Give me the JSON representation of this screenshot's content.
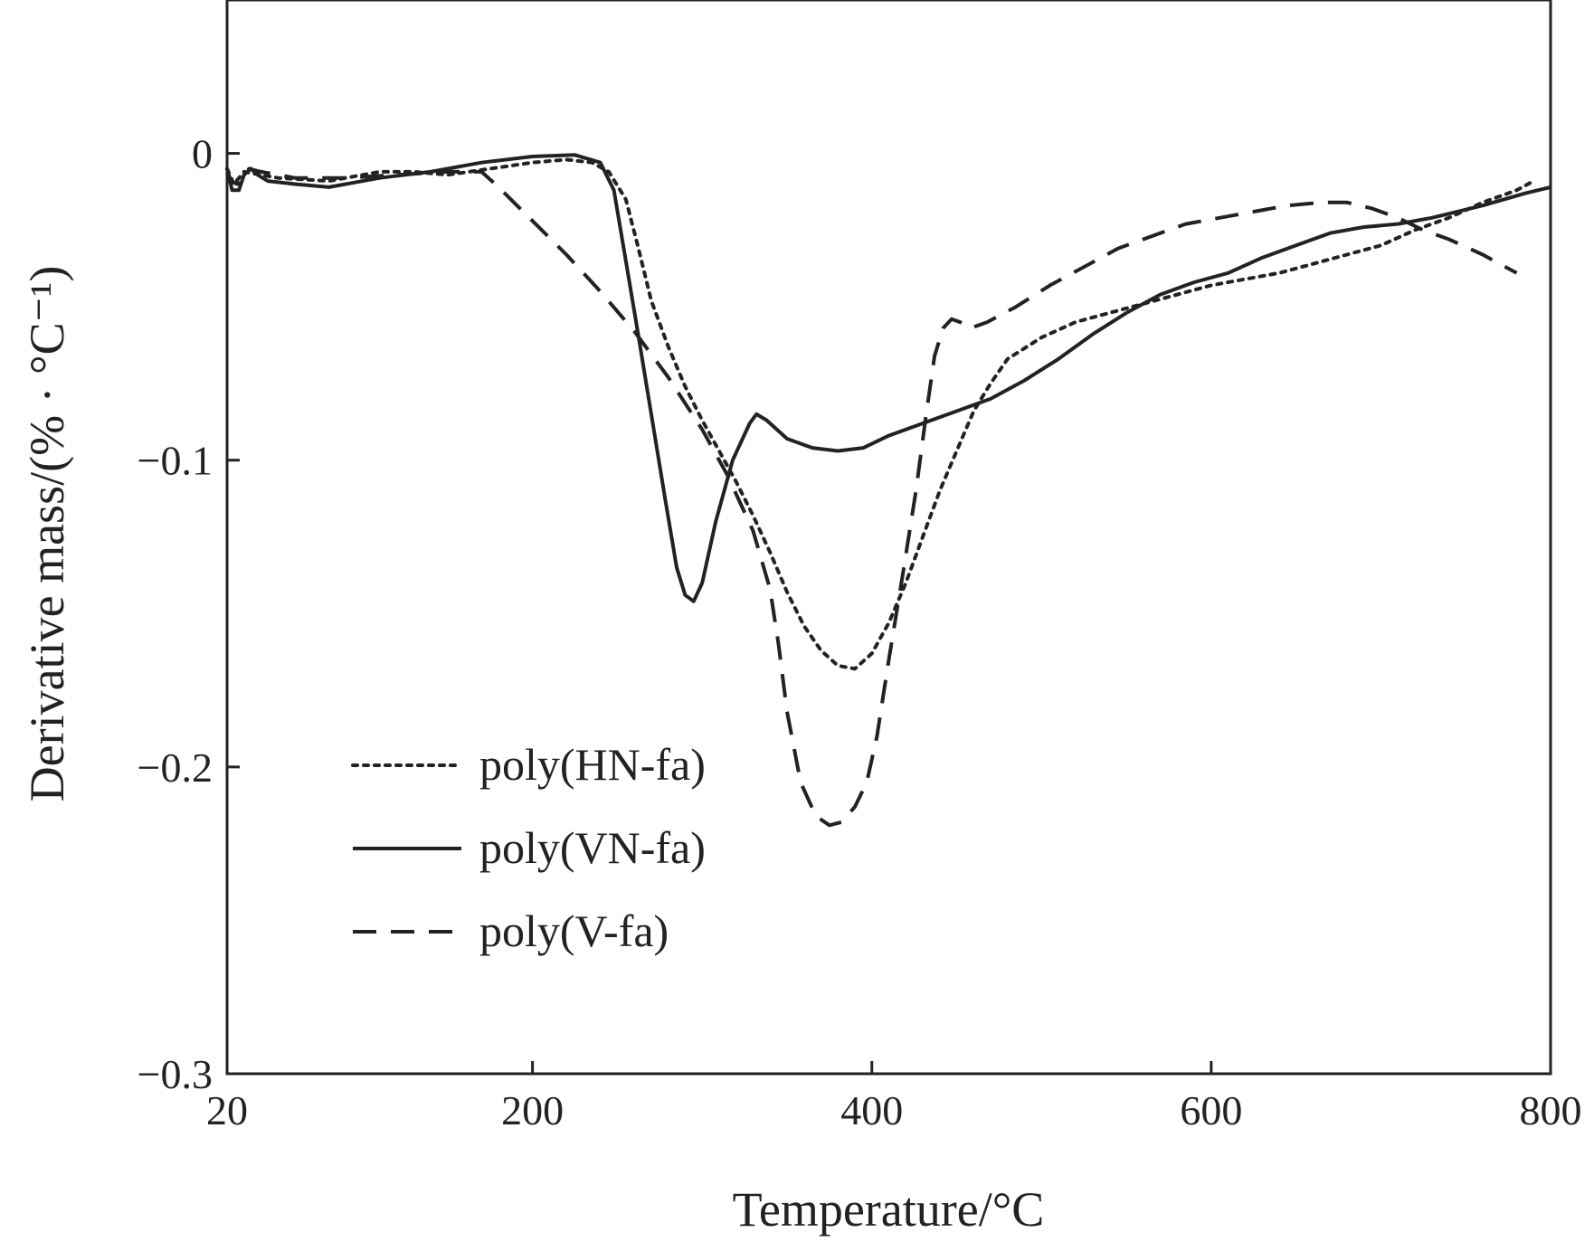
{
  "chart_data": {
    "type": "line",
    "title": "",
    "xlabel": "Temperature/°C",
    "ylabel": "Derivative mass/(% · °C⁻¹)",
    "xlim": [
      20,
      800
    ],
    "ylim": [
      -0.3,
      0.05
    ],
    "xticks": [
      20,
      200,
      400,
      600,
      800
    ],
    "xtick_labels": [
      "20",
      "200",
      "400",
      "600",
      "800"
    ],
    "yticks": [
      0,
      -0.1,
      -0.2,
      -0.3
    ],
    "ytick_labels": [
      "0",
      "−0.1",
      "−0.2",
      "−0.3"
    ],
    "grid": false,
    "legend_position": "bottom-left",
    "series": [
      {
        "name": "poly(HN-fa)",
        "line_style": "dotted",
        "color": "#222222",
        "points": [
          [
            20,
            -0.005
          ],
          [
            24,
            -0.01
          ],
          [
            30,
            -0.006
          ],
          [
            50,
            -0.008
          ],
          [
            80,
            -0.009
          ],
          [
            110,
            -0.006
          ],
          [
            130,
            -0.006
          ],
          [
            150,
            -0.007
          ],
          [
            175,
            -0.005
          ],
          [
            200,
            -0.003
          ],
          [
            220,
            -0.002
          ],
          [
            235,
            -0.003
          ],
          [
            245,
            -0.006
          ],
          [
            255,
            -0.015
          ],
          [
            262,
            -0.03
          ],
          [
            270,
            -0.048
          ],
          [
            280,
            -0.063
          ],
          [
            290,
            -0.076
          ],
          [
            300,
            -0.087
          ],
          [
            310,
            -0.097
          ],
          [
            320,
            -0.107
          ],
          [
            330,
            -0.118
          ],
          [
            340,
            -0.13
          ],
          [
            350,
            -0.143
          ],
          [
            360,
            -0.154
          ],
          [
            370,
            -0.162
          ],
          [
            380,
            -0.167
          ],
          [
            390,
            -0.168
          ],
          [
            400,
            -0.163
          ],
          [
            410,
            -0.153
          ],
          [
            420,
            -0.14
          ],
          [
            430,
            -0.125
          ],
          [
            440,
            -0.11
          ],
          [
            450,
            -0.097
          ],
          [
            460,
            -0.084
          ],
          [
            470,
            -0.075
          ],
          [
            480,
            -0.067
          ],
          [
            500,
            -0.06
          ],
          [
            520,
            -0.055
          ],
          [
            540,
            -0.052
          ],
          [
            560,
            -0.049
          ],
          [
            580,
            -0.046
          ],
          [
            600,
            -0.043
          ],
          [
            620,
            -0.041
          ],
          [
            640,
            -0.039
          ],
          [
            660,
            -0.036
          ],
          [
            680,
            -0.033
          ],
          [
            700,
            -0.03
          ],
          [
            720,
            -0.025
          ],
          [
            740,
            -0.021
          ],
          [
            760,
            -0.016
          ],
          [
            780,
            -0.012
          ],
          [
            790,
            -0.009
          ]
        ]
      },
      {
        "name": "poly(VN-fa)",
        "line_style": "solid",
        "color": "#222222",
        "points": [
          [
            20,
            -0.005
          ],
          [
            23,
            -0.012
          ],
          [
            27,
            -0.012
          ],
          [
            30,
            -0.007
          ],
          [
            34,
            -0.005
          ],
          [
            38,
            -0.007
          ],
          [
            44,
            -0.009
          ],
          [
            60,
            -0.01
          ],
          [
            80,
            -0.011
          ],
          [
            110,
            -0.008
          ],
          [
            140,
            -0.006
          ],
          [
            170,
            -0.003
          ],
          [
            200,
            -0.001
          ],
          [
            225,
            -0.0005
          ],
          [
            240,
            -0.003
          ],
          [
            248,
            -0.012
          ],
          [
            255,
            -0.035
          ],
          [
            262,
            -0.058
          ],
          [
            270,
            -0.085
          ],
          [
            278,
            -0.112
          ],
          [
            285,
            -0.135
          ],
          [
            290,
            -0.144
          ],
          [
            295,
            -0.146
          ],
          [
            300,
            -0.14
          ],
          [
            308,
            -0.12
          ],
          [
            318,
            -0.1
          ],
          [
            328,
            -0.088
          ],
          [
            332,
            -0.085
          ],
          [
            338,
            -0.087
          ],
          [
            350,
            -0.093
          ],
          [
            365,
            -0.096
          ],
          [
            380,
            -0.097
          ],
          [
            395,
            -0.096
          ],
          [
            410,
            -0.092
          ],
          [
            430,
            -0.088
          ],
          [
            450,
            -0.084
          ],
          [
            470,
            -0.08
          ],
          [
            490,
            -0.074
          ],
          [
            510,
            -0.067
          ],
          [
            530,
            -0.059
          ],
          [
            550,
            -0.052
          ],
          [
            570,
            -0.046
          ],
          [
            590,
            -0.042
          ],
          [
            610,
            -0.039
          ],
          [
            630,
            -0.034
          ],
          [
            650,
            -0.03
          ],
          [
            670,
            -0.026
          ],
          [
            690,
            -0.024
          ],
          [
            710,
            -0.023
          ],
          [
            730,
            -0.021
          ],
          [
            760,
            -0.017
          ],
          [
            785,
            -0.013
          ],
          [
            800,
            -0.011
          ]
        ]
      },
      {
        "name": "poly(V-fa)",
        "line_style": "dashed",
        "color": "#222222",
        "points": [
          [
            20,
            -0.005
          ],
          [
            22,
            -0.009
          ],
          [
            26,
            -0.01
          ],
          [
            29,
            -0.007
          ],
          [
            33,
            -0.005
          ],
          [
            40,
            -0.006
          ],
          [
            60,
            -0.008
          ],
          [
            90,
            -0.008
          ],
          [
            120,
            -0.007
          ],
          [
            150,
            -0.006
          ],
          [
            170,
            -0.006
          ],
          [
            180,
            -0.011
          ],
          [
            200,
            -0.022
          ],
          [
            220,
            -0.033
          ],
          [
            240,
            -0.045
          ],
          [
            260,
            -0.058
          ],
          [
            280,
            -0.073
          ],
          [
            300,
            -0.09
          ],
          [
            315,
            -0.105
          ],
          [
            330,
            -0.123
          ],
          [
            340,
            -0.142
          ],
          [
            345,
            -0.16
          ],
          [
            350,
            -0.182
          ],
          [
            358,
            -0.205
          ],
          [
            367,
            -0.216
          ],
          [
            375,
            -0.219
          ],
          [
            382,
            -0.218
          ],
          [
            390,
            -0.213
          ],
          [
            397,
            -0.205
          ],
          [
            403,
            -0.19
          ],
          [
            410,
            -0.165
          ],
          [
            418,
            -0.138
          ],
          [
            426,
            -0.11
          ],
          [
            432,
            -0.085
          ],
          [
            437,
            -0.066
          ],
          [
            442,
            -0.057
          ],
          [
            447,
            -0.054
          ],
          [
            452,
            -0.055
          ],
          [
            458,
            -0.057
          ],
          [
            468,
            -0.055
          ],
          [
            485,
            -0.05
          ],
          [
            505,
            -0.043
          ],
          [
            525,
            -0.037
          ],
          [
            545,
            -0.031
          ],
          [
            565,
            -0.027
          ],
          [
            585,
            -0.023
          ],
          [
            605,
            -0.021
          ],
          [
            625,
            -0.019
          ],
          [
            645,
            -0.017
          ],
          [
            665,
            -0.016
          ],
          [
            680,
            -0.016
          ],
          [
            695,
            -0.018
          ],
          [
            710,
            -0.021
          ],
          [
            725,
            -0.025
          ],
          [
            740,
            -0.028
          ],
          [
            760,
            -0.033
          ],
          [
            780,
            -0.039
          ]
        ]
      }
    ]
  }
}
